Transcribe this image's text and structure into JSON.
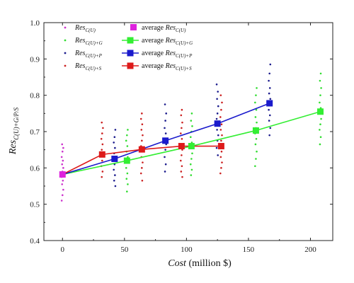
{
  "chart_data": {
    "type": "scatter",
    "title": "",
    "xlabel": {
      "main": "Cost",
      "unit": " (million $)"
    },
    "ylabel": {
      "main": "Res",
      "sub": "C(U)+G/P/S"
    },
    "xlim": [
      -15,
      218
    ],
    "ylim": [
      0.4,
      1.0
    ],
    "xticks": [
      0,
      50,
      100,
      150,
      200
    ],
    "yticks": [
      0.4,
      0.5,
      0.6,
      0.7,
      0.8,
      0.9,
      1.0
    ],
    "grid": false,
    "legend_position": "top-left",
    "base_point": {
      "x": 0,
      "y": 0.582,
      "color": "#dd22dd",
      "name": "average Res",
      "sub": "C(U)"
    },
    "scatter_series": [
      {
        "name": "Res",
        "sub": "C(U)",
        "color": "#cc33cc",
        "points": [
          [
            0,
            0.51
          ],
          [
            0,
            0.525
          ],
          [
            0,
            0.54
          ],
          [
            0,
            0.555
          ],
          [
            0,
            0.565
          ],
          [
            0,
            0.575
          ],
          [
            0,
            0.59
          ],
          [
            0,
            0.6
          ],
          [
            0,
            0.61
          ],
          [
            0,
            0.62
          ],
          [
            0,
            0.63
          ],
          [
            0,
            0.645
          ],
          [
            0,
            0.655
          ],
          [
            0,
            0.665
          ]
        ]
      },
      {
        "name": "Res",
        "sub": "C(U)+G",
        "color": "#33dd33",
        "points": [
          [
            52,
            0.535
          ],
          [
            52,
            0.555
          ],
          [
            52,
            0.57
          ],
          [
            52,
            0.585
          ],
          [
            52,
            0.6
          ],
          [
            52,
            0.615
          ],
          [
            52,
            0.63
          ],
          [
            52,
            0.645
          ],
          [
            52,
            0.66
          ],
          [
            52,
            0.675
          ],
          [
            52,
            0.69
          ],
          [
            52,
            0.705
          ],
          [
            104,
            0.58
          ],
          [
            104,
            0.595
          ],
          [
            104,
            0.61
          ],
          [
            104,
            0.625
          ],
          [
            104,
            0.64
          ],
          [
            104,
            0.655
          ],
          [
            104,
            0.67
          ],
          [
            104,
            0.685
          ],
          [
            104,
            0.7
          ],
          [
            104,
            0.715
          ],
          [
            104,
            0.73
          ],
          [
            104,
            0.75
          ],
          [
            156,
            0.605
          ],
          [
            156,
            0.625
          ],
          [
            156,
            0.645
          ],
          [
            156,
            0.665
          ],
          [
            156,
            0.68
          ],
          [
            156,
            0.695
          ],
          [
            156,
            0.71
          ],
          [
            156,
            0.725
          ],
          [
            156,
            0.74
          ],
          [
            156,
            0.76
          ],
          [
            156,
            0.78
          ],
          [
            156,
            0.8
          ],
          [
            156,
            0.82
          ],
          [
            208,
            0.665
          ],
          [
            208,
            0.685
          ],
          [
            208,
            0.705
          ],
          [
            208,
            0.72
          ],
          [
            208,
            0.735
          ],
          [
            208,
            0.75
          ],
          [
            208,
            0.765
          ],
          [
            208,
            0.78
          ],
          [
            208,
            0.8
          ],
          [
            208,
            0.82
          ],
          [
            208,
            0.84
          ],
          [
            208,
            0.86
          ]
        ]
      },
      {
        "name": "Res",
        "sub": "C(U)+P",
        "color": "#1a1a8c",
        "points": [
          [
            42,
            0.55
          ],
          [
            42,
            0.565
          ],
          [
            42,
            0.58
          ],
          [
            42,
            0.595
          ],
          [
            42,
            0.61
          ],
          [
            42,
            0.625
          ],
          [
            42,
            0.64
          ],
          [
            42,
            0.655
          ],
          [
            42,
            0.67
          ],
          [
            42,
            0.685
          ],
          [
            42,
            0.705
          ],
          [
            83,
            0.59
          ],
          [
            83,
            0.61
          ],
          [
            83,
            0.63
          ],
          [
            83,
            0.65
          ],
          [
            83,
            0.665
          ],
          [
            83,
            0.68
          ],
          [
            83,
            0.695
          ],
          [
            83,
            0.71
          ],
          [
            83,
            0.73
          ],
          [
            83,
            0.75
          ],
          [
            83,
            0.775
          ],
          [
            125,
            0.635
          ],
          [
            125,
            0.655
          ],
          [
            125,
            0.675
          ],
          [
            125,
            0.69
          ],
          [
            125,
            0.705
          ],
          [
            125,
            0.72
          ],
          [
            125,
            0.735
          ],
          [
            125,
            0.75
          ],
          [
            125,
            0.77
          ],
          [
            125,
            0.79
          ],
          [
            125,
            0.81
          ],
          [
            125,
            0.83
          ],
          [
            167,
            0.69
          ],
          [
            167,
            0.71
          ],
          [
            167,
            0.73
          ],
          [
            167,
            0.745
          ],
          [
            167,
            0.76
          ],
          [
            167,
            0.775
          ],
          [
            167,
            0.79
          ],
          [
            167,
            0.805
          ],
          [
            167,
            0.82
          ],
          [
            167,
            0.84
          ],
          [
            167,
            0.86
          ],
          [
            167,
            0.885
          ]
        ]
      },
      {
        "name": "Res",
        "sub": "C(U)+S",
        "color": "#cc2222",
        "points": [
          [
            32,
            0.575
          ],
          [
            32,
            0.59
          ],
          [
            32,
            0.605
          ],
          [
            32,
            0.62
          ],
          [
            32,
            0.635
          ],
          [
            32,
            0.65
          ],
          [
            32,
            0.665
          ],
          [
            32,
            0.68
          ],
          [
            32,
            0.695
          ],
          [
            32,
            0.71
          ],
          [
            32,
            0.725
          ],
          [
            64,
            0.565
          ],
          [
            64,
            0.585
          ],
          [
            64,
            0.6
          ],
          [
            64,
            0.615
          ],
          [
            64,
            0.63
          ],
          [
            64,
            0.645
          ],
          [
            64,
            0.66
          ],
          [
            64,
            0.675
          ],
          [
            64,
            0.69
          ],
          [
            64,
            0.705
          ],
          [
            64,
            0.72
          ],
          [
            64,
            0.735
          ],
          [
            64,
            0.75
          ],
          [
            96,
            0.575
          ],
          [
            96,
            0.59
          ],
          [
            96,
            0.605
          ],
          [
            96,
            0.62
          ],
          [
            96,
            0.635
          ],
          [
            96,
            0.65
          ],
          [
            96,
            0.665
          ],
          [
            96,
            0.68
          ],
          [
            96,
            0.695
          ],
          [
            96,
            0.71
          ],
          [
            96,
            0.725
          ],
          [
            96,
            0.745
          ],
          [
            96,
            0.76
          ],
          [
            128,
            0.585
          ],
          [
            128,
            0.6
          ],
          [
            128,
            0.615
          ],
          [
            128,
            0.63
          ],
          [
            128,
            0.645
          ],
          [
            128,
            0.66
          ],
          [
            128,
            0.675
          ],
          [
            128,
            0.69
          ],
          [
            128,
            0.705
          ],
          [
            128,
            0.72
          ],
          [
            128,
            0.74
          ],
          [
            128,
            0.76
          ],
          [
            128,
            0.78
          ],
          [
            128,
            0.8
          ]
        ]
      }
    ],
    "average_series": [
      {
        "name": "average Res",
        "sub": "C(U)+G",
        "color": "#33ee33",
        "x": [
          0,
          52,
          104,
          156,
          208
        ],
        "y": [
          0.582,
          0.62,
          0.66,
          0.703,
          0.755
        ]
      },
      {
        "name": "average Res",
        "sub": "C(U)+P",
        "color": "#1a1acc",
        "x": [
          0,
          42,
          83,
          125,
          167
        ],
        "y": [
          0.582,
          0.625,
          0.675,
          0.722,
          0.778
        ]
      },
      {
        "name": "average Res",
        "sub": "C(U)+S",
        "color": "#dd1a1a",
        "x": [
          0,
          32,
          64,
          96,
          128
        ],
        "y": [
          0.582,
          0.637,
          0.651,
          0.66,
          0.66
        ]
      }
    ]
  }
}
